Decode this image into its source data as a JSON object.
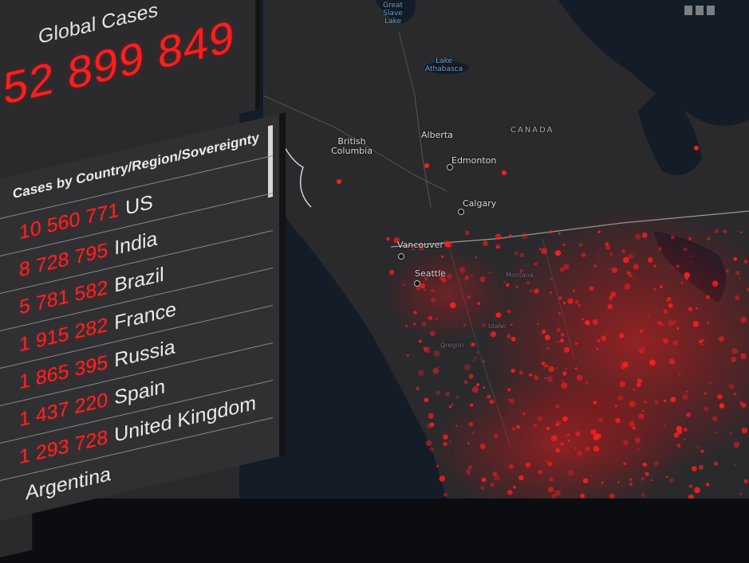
{
  "global": {
    "title": "Global Cases",
    "value": "52 899 849"
  },
  "cases_by_country": {
    "title": "Cases by Country/Region/Sovereignty",
    "rows": [
      {
        "count": "10 560 771",
        "name": "US"
      },
      {
        "count": "8 728 795",
        "name": "India"
      },
      {
        "count": "5 781 582",
        "name": "Brazil"
      },
      {
        "count": "1 915 282",
        "name": "France"
      },
      {
        "count": "1 865 395",
        "name": "Russia"
      },
      {
        "count": "1 437 220",
        "name": "Spain"
      },
      {
        "count": "1 293 728",
        "name": "United Kingdom"
      },
      {
        "count": "",
        "name": "Argentina"
      }
    ]
  },
  "map": {
    "country_label": "CANADA",
    "water_labels": [
      "Great\nSlave\nLake",
      "Lake\nAthabasca"
    ],
    "region_labels": [
      "British\nColumbia",
      "Alberta"
    ],
    "state_labels": [
      "Oregon",
      "Idaho",
      "Montana"
    ],
    "cities": [
      "Edmonton",
      "Calgary",
      "Vancouver",
      "Seattle"
    ]
  },
  "colors": {
    "case_red": "#ff1e1e",
    "panel_bg": "#2b2b2e",
    "map_land": "#2a2a2d",
    "map_water": "#141c28"
  }
}
